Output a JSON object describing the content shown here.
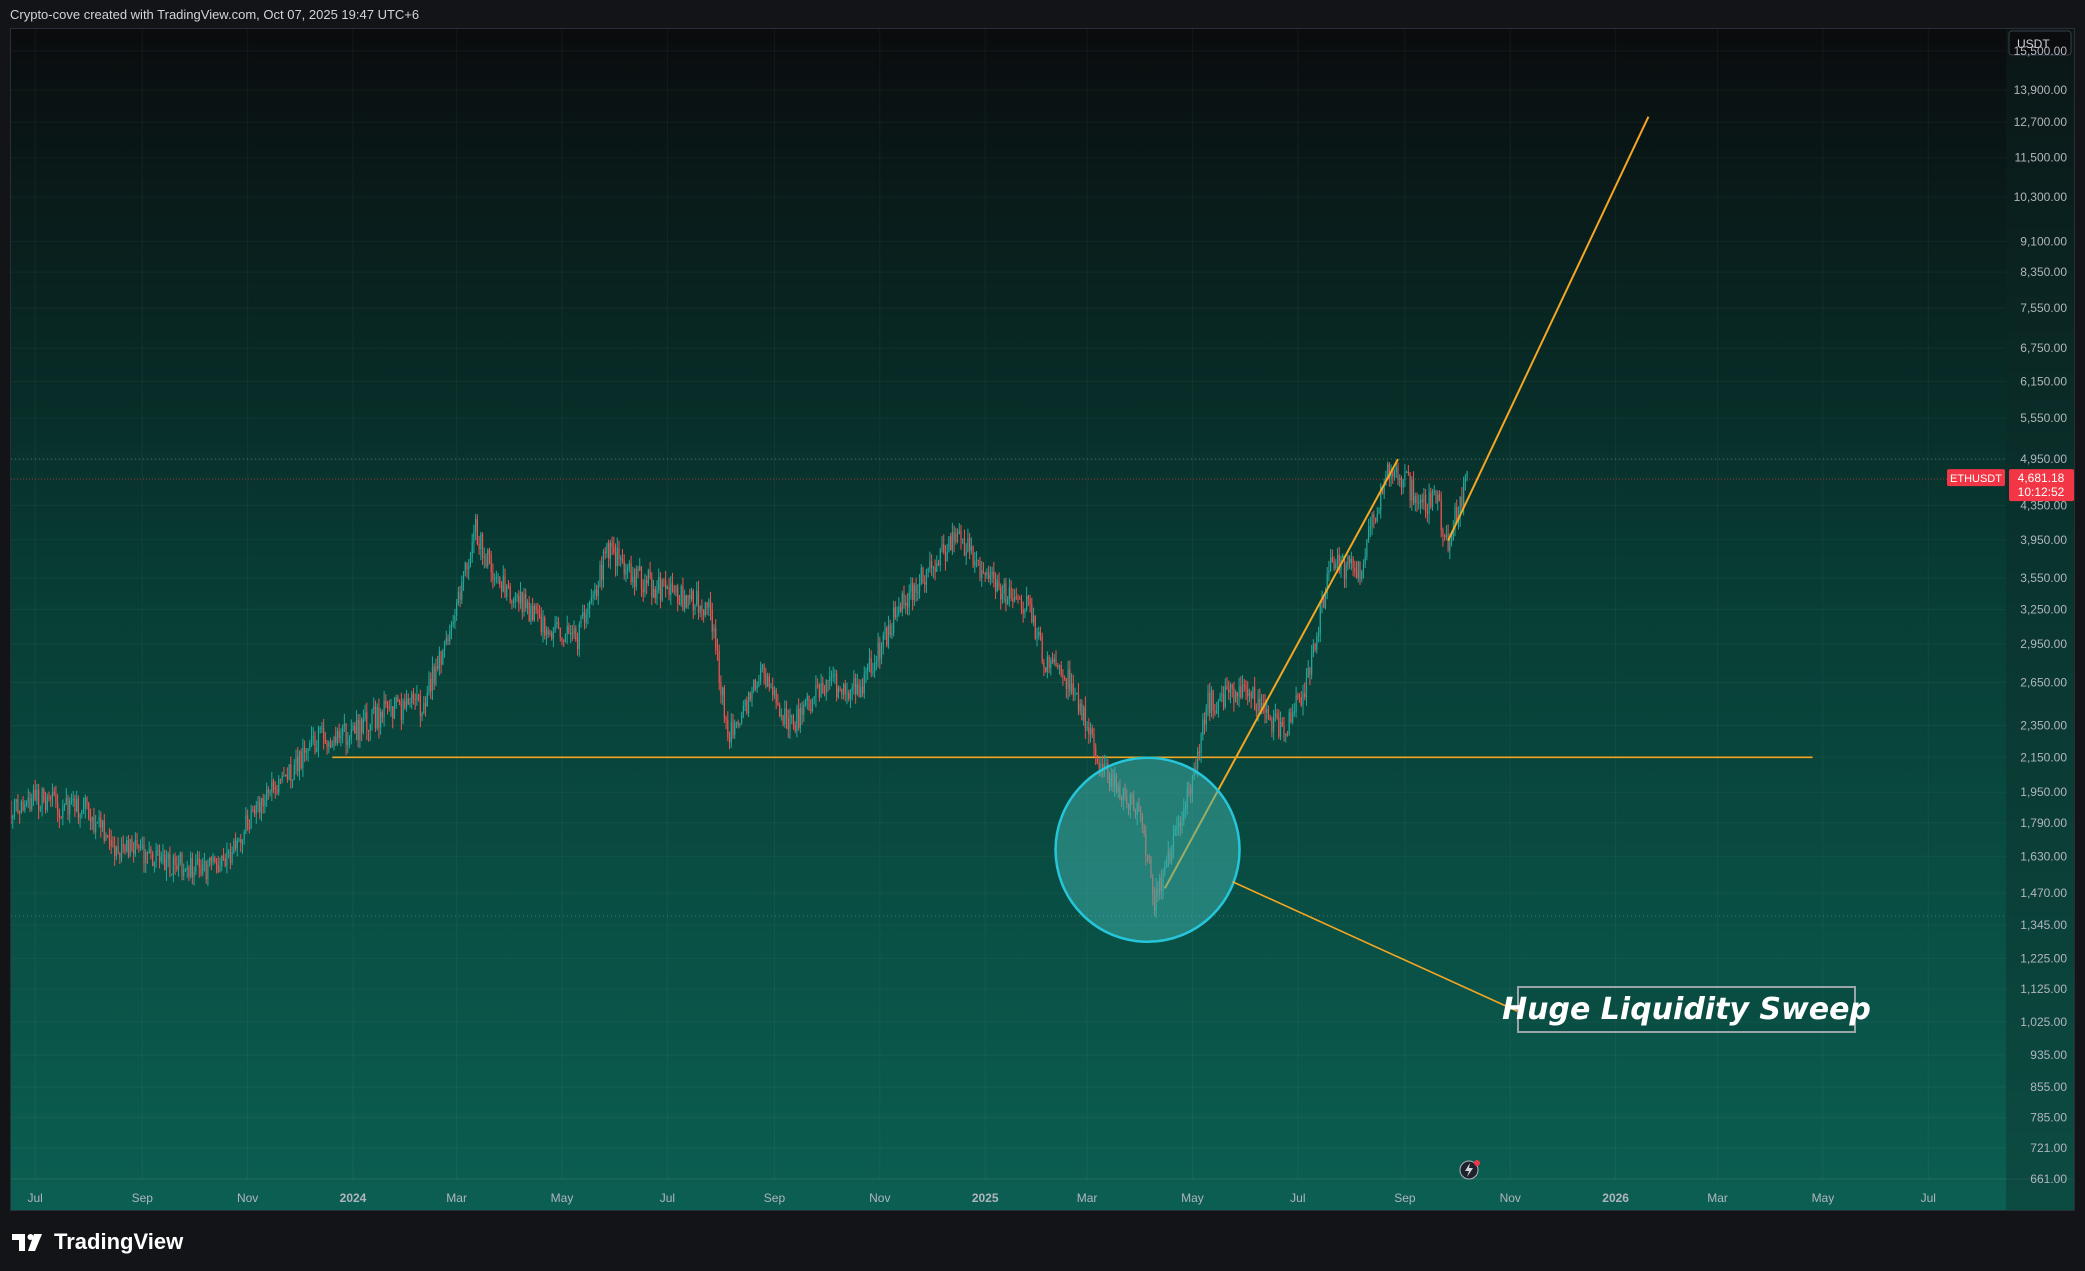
{
  "header": {
    "text": "Crypto-cove created with TradingView.com, Oct 07, 2025 19:47 UTC+6"
  },
  "footer": {
    "logo_text": "TradingView",
    "logo_icon": "tradingview-logo-icon"
  },
  "price_scale": {
    "currency": "USDT"
  },
  "colors": {
    "bg_top": "#0a0c0e",
    "bg_bottom": "#0b5f52",
    "up": "#26a69a",
    "down": "#ef5350",
    "trendline": "#f5a623",
    "circle_fill": "#3fb3ad",
    "circle_stroke": "#26c6da",
    "badge": "#f23645",
    "axis_text": "#b2b5be"
  },
  "chart_data": {
    "type": "candlestick",
    "symbol": "ETHUSDT",
    "y_scale": "log",
    "grid": true,
    "last_price": "4,681.18",
    "countdown": "10:12:52",
    "ylim": [
      661,
      15500
    ],
    "xlim": [
      "2023-06-17",
      "2026-08-15"
    ],
    "y_ticks": [
      "15,500.00",
      "13,900.00",
      "12,700.00",
      "11,500.00",
      "10,300.00",
      "9,100.00",
      "8,350.00",
      "7,550.00",
      "6,750.00",
      "6,150.00",
      "5,550.00",
      "4,950.00",
      "4,350.00",
      "3,950.00",
      "3,550.00",
      "3,250.00",
      "2,950.00",
      "2,650.00",
      "2,350.00",
      "2,150.00",
      "1,950.00",
      "1,790.00",
      "1,630.00",
      "1,470.00",
      "1,345.00",
      "1,225.00",
      "1,125.00",
      "1,025.00",
      "935.00",
      "855.00",
      "785.00",
      "721.00",
      "661.00"
    ],
    "x_ticks": [
      {
        "label": "Jul",
        "date": "2023-07-01"
      },
      {
        "label": "Sep",
        "date": "2023-09-01"
      },
      {
        "label": "Nov",
        "date": "2023-11-01"
      },
      {
        "label": "2024",
        "date": "2024-01-01"
      },
      {
        "label": "Mar",
        "date": "2024-03-01"
      },
      {
        "label": "May",
        "date": "2024-05-01"
      },
      {
        "label": "Jul",
        "date": "2024-07-01"
      },
      {
        "label": "Sep",
        "date": "2024-09-01"
      },
      {
        "label": "Nov",
        "date": "2024-11-01"
      },
      {
        "label": "2025",
        "date": "2025-01-01"
      },
      {
        "label": "Mar",
        "date": "2025-03-01"
      },
      {
        "label": "May",
        "date": "2025-05-01"
      },
      {
        "label": "Jul",
        "date": "2025-07-01"
      },
      {
        "label": "Sep",
        "date": "2025-09-01"
      },
      {
        "label": "Nov",
        "date": "2025-11-01"
      },
      {
        "label": "2026",
        "date": "2026-01-01"
      },
      {
        "label": "Mar",
        "date": "2026-03-01"
      },
      {
        "label": "May",
        "date": "2026-05-01"
      },
      {
        "label": "Jul",
        "date": "2026-07-01"
      }
    ],
    "price_path": [
      [
        "2023-06-17",
        1860
      ],
      [
        "2023-07-01",
        1920
      ],
      [
        "2023-07-15",
        1880
      ],
      [
        "2023-07-30",
        1860
      ],
      [
        "2023-08-16",
        1680
      ],
      [
        "2023-09-01",
        1640
      ],
      [
        "2023-09-20",
        1600
      ],
      [
        "2023-10-10",
        1580
      ],
      [
        "2023-10-20",
        1600
      ],
      [
        "2023-11-01",
        1790
      ],
      [
        "2023-11-20",
        2000
      ],
      [
        "2023-12-10",
        2250
      ],
      [
        "2023-12-31",
        2300
      ],
      [
        "2024-01-20",
        2450
      ],
      [
        "2024-02-10",
        2500
      ],
      [
        "2024-02-25",
        3000
      ],
      [
        "2024-03-12",
        4050
      ],
      [
        "2024-03-25",
        3500
      ],
      [
        "2024-04-05",
        3400
      ],
      [
        "2024-04-20",
        3100
      ],
      [
        "2024-05-10",
        3000
      ],
      [
        "2024-05-28",
        3850
      ],
      [
        "2024-06-10",
        3600
      ],
      [
        "2024-07-01",
        3400
      ],
      [
        "2024-07-25",
        3300
      ],
      [
        "2024-08-05",
        2300
      ],
      [
        "2024-08-25",
        2700
      ],
      [
        "2024-09-10",
        2350
      ],
      [
        "2024-10-01",
        2650
      ],
      [
        "2024-10-20",
        2600
      ],
      [
        "2024-11-10",
        3200
      ],
      [
        "2024-12-01",
        3700
      ],
      [
        "2024-12-16",
        4000
      ],
      [
        "2025-01-05",
        3500
      ],
      [
        "2025-01-25",
        3300
      ],
      [
        "2025-02-05",
        2800
      ],
      [
        "2025-02-20",
        2650
      ],
      [
        "2025-03-05",
        2200
      ],
      [
        "2025-03-20",
        1950
      ],
      [
        "2025-04-01",
        1800
      ],
      [
        "2025-04-09",
        1450
      ],
      [
        "2025-04-25",
        1800
      ],
      [
        "2025-05-10",
        2500
      ],
      [
        "2025-06-01",
        2600
      ],
      [
        "2025-06-22",
        2300
      ],
      [
        "2025-07-05",
        2600
      ],
      [
        "2025-07-20",
        3700
      ],
      [
        "2025-08-05",
        3600
      ],
      [
        "2025-08-24",
        4900
      ],
      [
        "2025-09-10",
        4400
      ],
      [
        "2025-09-20",
        4400
      ],
      [
        "2025-09-25",
        3900
      ],
      [
        "2025-10-07",
        4681
      ]
    ],
    "horizontal_lines": [
      {
        "price": 2150,
        "style": "solid",
        "color": "#f5a623"
      },
      {
        "price": 4950,
        "style": "dotted"
      },
      {
        "price": 1380,
        "style": "dotted"
      }
    ],
    "trendlines": [
      {
        "from": [
          "2025-04-15",
          1490
        ],
        "to": [
          "2025-08-28",
          4950
        ]
      },
      {
        "from": [
          "2025-09-26",
          3940
        ],
        "to": [
          "2026-01-20",
          12900
        ]
      }
    ],
    "annotation": {
      "text": "Huge Liquidity Sweep",
      "circle_center": [
        "2025-04-05",
        1660
      ]
    }
  }
}
